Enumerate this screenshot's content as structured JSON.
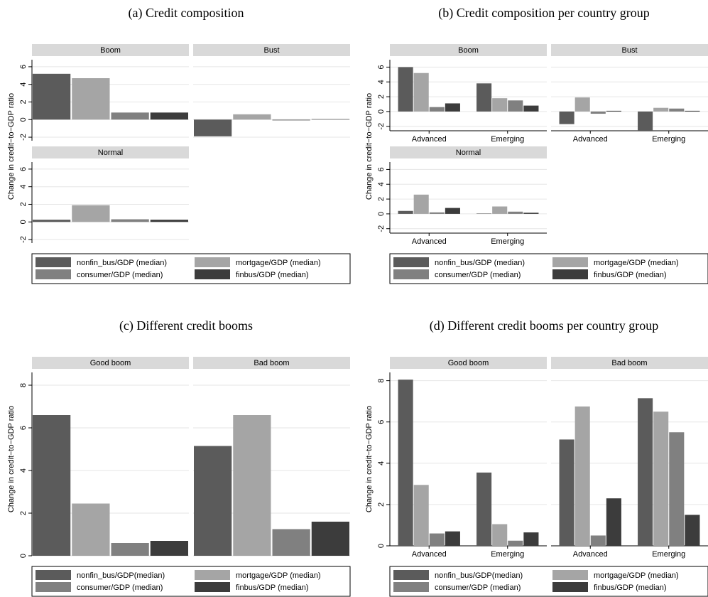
{
  "chart_data": [
    {
      "type": "bar",
      "title": "(a) Credit composition",
      "ylabel": "Change in credit−to−GDP ratio",
      "ylim": [
        -2.4,
        6.8
      ],
      "yticks": [
        -2,
        0,
        2,
        4,
        6
      ],
      "series": [
        {
          "name": "nonfin_bus/GDP (median)",
          "color": "#5b5b5b"
        },
        {
          "name": "mortgage/GDP (median)",
          "color": "#a5a5a5"
        },
        {
          "name": "consumer/GDP (median)",
          "color": "#808080"
        },
        {
          "name": "finbus/GDP (median)",
          "color": "#3c3c3c"
        }
      ],
      "panels": [
        {
          "title": "Boom",
          "values": [
            5.2,
            4.7,
            0.8,
            0.8
          ]
        },
        {
          "title": "Bust",
          "values": [
            -1.9,
            0.6,
            -0.1,
            0.05
          ]
        },
        {
          "title": "Normal",
          "values": [
            0.25,
            1.9,
            0.3,
            0.25
          ]
        }
      ]
    },
    {
      "type": "bar",
      "title": "(b) Credit composition per country group",
      "ylabel": "Change in credit−to−GDP ratio",
      "ylim": [
        -2.6,
        7
      ],
      "yticks": [
        -2,
        0,
        2,
        4,
        6
      ],
      "series": [
        {
          "name": "nonfin_bus/GDP (median)",
          "color": "#5b5b5b"
        },
        {
          "name": "mortgage/GDP (median)",
          "color": "#a5a5a5"
        },
        {
          "name": "consumer/GDP (median)",
          "color": "#808080"
        },
        {
          "name": "finbus/GDP (median)",
          "color": "#3c3c3c"
        }
      ],
      "panels": [
        {
          "title": "Boom",
          "categories": [
            "Advanced",
            "Emerging"
          ],
          "values": [
            [
              6.0,
              3.8
            ],
            [
              5.2,
              1.8
            ],
            [
              0.6,
              1.5
            ],
            [
              1.1,
              0.8
            ]
          ]
        },
        {
          "title": "Bust",
          "categories": [
            "Advanced",
            "Emerging"
          ],
          "values": [
            [
              -1.7,
              -2.6
            ],
            [
              1.9,
              0.5
            ],
            [
              -0.3,
              0.4
            ],
            [
              0.1,
              0.1
            ]
          ]
        },
        {
          "title": "Normal",
          "categories": [
            "Advanced",
            "Emerging"
          ],
          "values": [
            [
              0.4,
              0.05
            ],
            [
              2.6,
              1.0
            ],
            [
              0.2,
              0.3
            ],
            [
              0.8,
              0.15
            ]
          ]
        }
      ]
    },
    {
      "type": "bar",
      "title": "(c) Different credit booms",
      "ylabel": "Change in credit−to−GDP ratio",
      "ylim": [
        0,
        8.6
      ],
      "yticks": [
        0,
        2,
        4,
        6,
        8
      ],
      "series": [
        {
          "name": "nonfin_bus/GDP(median)",
          "color": "#5b5b5b"
        },
        {
          "name": "mortgage/GDP (median)",
          "color": "#a5a5a5"
        },
        {
          "name": "consumer/GDP (median)",
          "color": "#808080"
        },
        {
          "name": "finbus/GDP (median)",
          "color": "#3c3c3c"
        }
      ],
      "panels": [
        {
          "title": "Good boom",
          "values": [
            6.6,
            2.45,
            0.6,
            0.7
          ]
        },
        {
          "title": "Bad boom",
          "values": [
            5.15,
            6.6,
            1.25,
            1.6
          ]
        }
      ]
    },
    {
      "type": "bar",
      "title": "(d) Different credit booms per country group",
      "ylabel": "Change in credit−to−GDP ratio",
      "ylim": [
        0,
        8.4
      ],
      "yticks": [
        0,
        2,
        4,
        6,
        8
      ],
      "series": [
        {
          "name": "nonfin_bus/GDP(median)",
          "color": "#5b5b5b"
        },
        {
          "name": "mortgage/GDP (median)",
          "color": "#a5a5a5"
        },
        {
          "name": "consumer/GDP (median)",
          "color": "#808080"
        },
        {
          "name": "finbus/GDP (median)",
          "color": "#3c3c3c"
        }
      ],
      "panels": [
        {
          "title": "Good boom",
          "categories": [
            "Advanced",
            "Emerging"
          ],
          "values": [
            [
              8.05,
              3.55
            ],
            [
              2.95,
              1.05
            ],
            [
              0.6,
              0.25
            ],
            [
              0.7,
              0.65
            ]
          ]
        },
        {
          "title": "Bad boom",
          "categories": [
            "Advanced",
            "Emerging"
          ],
          "values": [
            [
              5.15,
              7.15
            ],
            [
              6.75,
              6.5
            ],
            [
              0.5,
              5.5
            ],
            [
              2.3,
              1.5
            ]
          ]
        }
      ]
    }
  ]
}
